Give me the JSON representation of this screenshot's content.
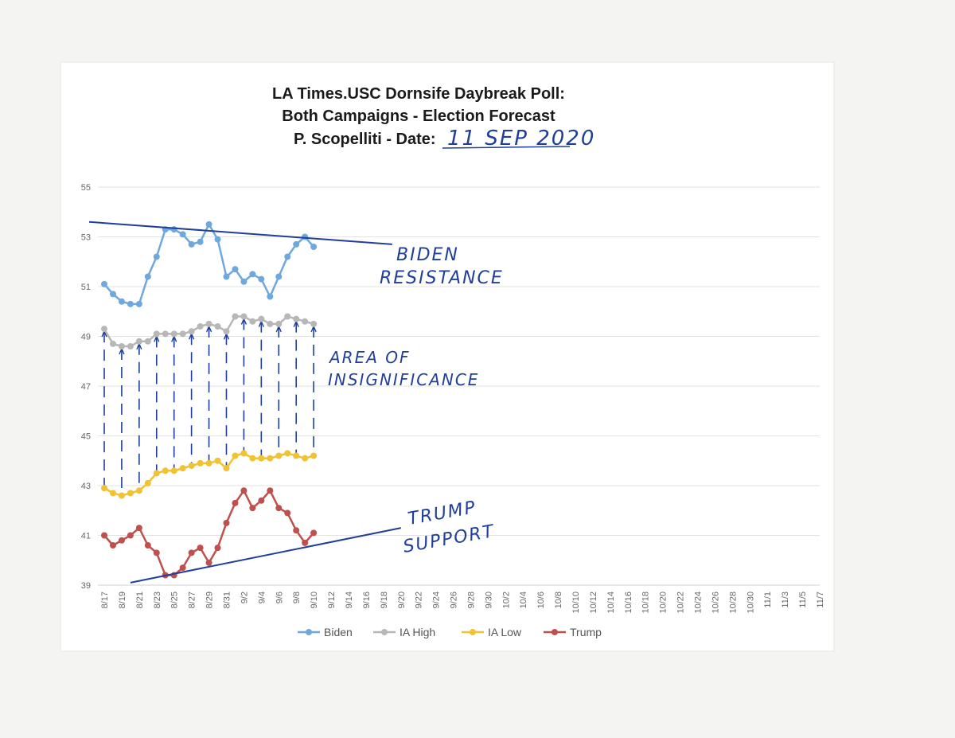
{
  "chart_data": {
    "type": "line",
    "title_lines": [
      "LA Times.USC Dornsife Daybreak Poll:",
      "Both Campaigns - Election Forecast",
      "P. Scopelliti - Date: "
    ],
    "handwritten_date": "11 SEP 2020",
    "ylim": [
      39,
      55
    ],
    "yticks": [
      39,
      41,
      43,
      45,
      47,
      49,
      51,
      53,
      55
    ],
    "grid": true,
    "legend_position": "bottom",
    "x_labels": [
      "8/17",
      "8/19",
      "8/21",
      "8/23",
      "8/25",
      "8/27",
      "8/29",
      "8/31",
      "9/2",
      "9/4",
      "9/6",
      "9/8",
      "9/10",
      "9/12",
      "9/14",
      "9/16",
      "9/18",
      "9/20",
      "9/22",
      "9/24",
      "9/26",
      "9/28",
      "9/30",
      "10/2",
      "10/4",
      "10/6",
      "10/8",
      "10/10",
      "10/12",
      "10/14",
      "10/16",
      "10/18",
      "10/20",
      "10/22",
      "10/24",
      "10/26",
      "10/28",
      "10/30",
      "11/1",
      "11/3",
      "11/5",
      "11/7"
    ],
    "series": [
      {
        "name": "Biden",
        "color": "#6fa8dc",
        "values": [
          51.1,
          50.7,
          50.4,
          50.3,
          50.3,
          51.4,
          52.2,
          53.3,
          53.3,
          53.1,
          52.7,
          52.8,
          53.5,
          52.9,
          51.4,
          51.7,
          51.2,
          51.5,
          51.3,
          50.6,
          51.4,
          52.2,
          52.7,
          53.0,
          52.6
        ]
      },
      {
        "name": "IA High",
        "color": "#b7b7b7",
        "values": [
          49.3,
          48.7,
          48.6,
          48.6,
          48.8,
          48.8,
          49.1,
          49.1,
          49.1,
          49.1,
          49.2,
          49.4,
          49.5,
          49.4,
          49.2,
          49.8,
          49.8,
          49.6,
          49.7,
          49.5,
          49.5,
          49.8,
          49.7,
          49.6,
          49.5
        ]
      },
      {
        "name": "IA Low",
        "color": "#f1c232",
        "values": [
          42.9,
          42.7,
          42.6,
          42.7,
          42.8,
          43.1,
          43.5,
          43.6,
          43.6,
          43.7,
          43.8,
          43.9,
          43.9,
          44.0,
          43.7,
          44.2,
          44.3,
          44.1,
          44.1,
          44.1,
          44.2,
          44.3,
          44.2,
          44.1,
          44.2
        ]
      },
      {
        "name": "Trump",
        "color": "#c0504d",
        "values": [
          41.0,
          40.6,
          40.8,
          41.0,
          41.3,
          40.6,
          40.3,
          39.4,
          39.4,
          39.7,
          40.3,
          40.5,
          39.9,
          40.5,
          41.5,
          42.3,
          42.8,
          42.1,
          42.4,
          42.8,
          42.1,
          41.9,
          41.2,
          40.7,
          41.1
        ]
      }
    ],
    "annotations": [
      {
        "lines": [
          "BIDEN",
          "RESISTANCE"
        ]
      },
      {
        "lines": [
          "AREA OF",
          "INSIGNIFICANCE"
        ]
      },
      {
        "lines": [
          "TRUMP",
          "SUPPORT"
        ]
      }
    ],
    "trendlines": [
      {
        "name": "biden-resistance",
        "from": {
          "x": "8/17",
          "y": 53.6
        },
        "to": {
          "x": "9/19",
          "y": 52.7
        }
      },
      {
        "name": "trump-support",
        "from": {
          "x": "8/20",
          "y": 39.1
        },
        "to": {
          "x": "9/20",
          "y": 41.3
        }
      }
    ]
  }
}
